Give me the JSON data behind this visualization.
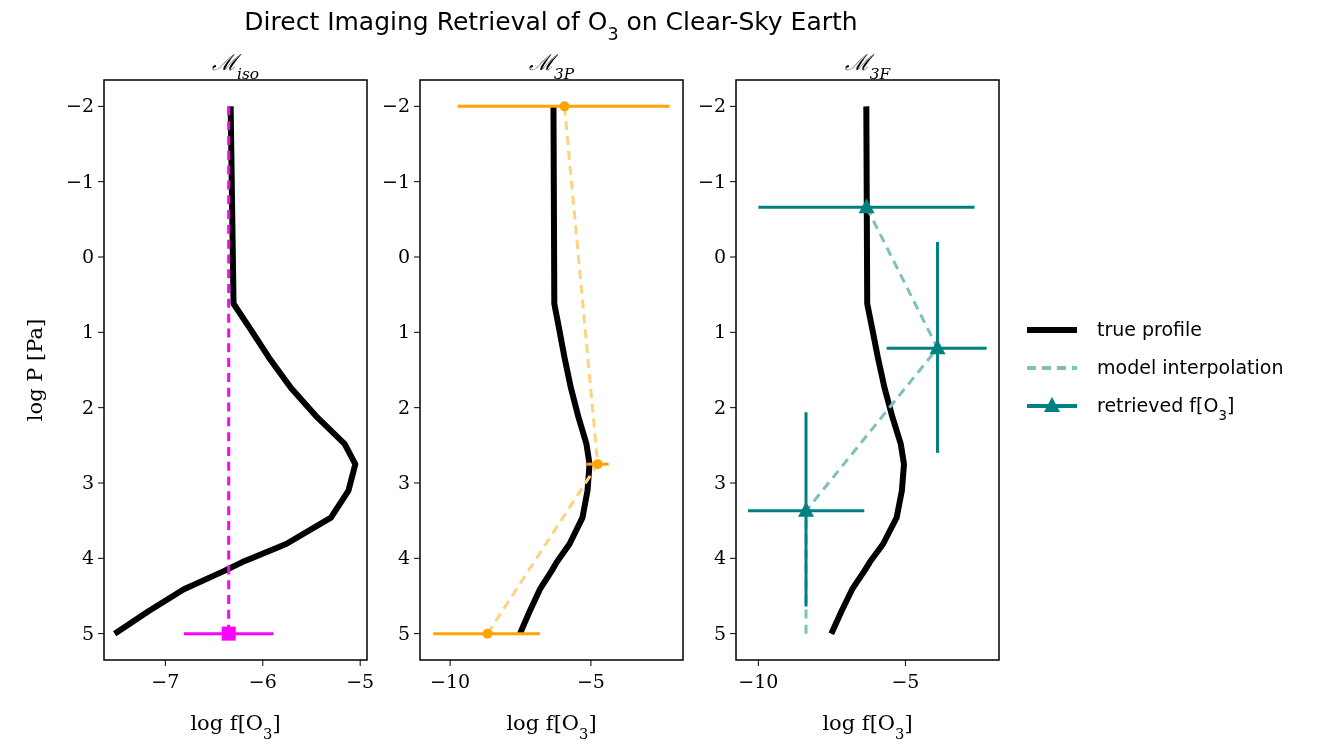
{
  "chart_data": [
    {
      "type": "line",
      "subtitle": "Direct Imaging Retrieval of O$_{3}$ on Clear-Sky Earth",
      "title": "ℳ$_{iso}$",
      "xlabel": "log f[O$_{3}$]",
      "ylabel": "log P [Pa]",
      "xlim": [
        -7.63,
        -4.93
      ],
      "xticks": [
        -7,
        -6,
        -5
      ],
      "ylim": [
        5.35,
        -2.35
      ],
      "yticks": [
        -2,
        -1,
        0,
        1,
        2,
        3,
        4,
        5
      ],
      "series": [
        {
          "color": "#000000",
          "line_style": "solid",
          "x": [
            -6.33,
            -6.3,
            -6.12,
            -5.94,
            -5.71,
            -5.44,
            -5.16,
            -5.05,
            -5.12,
            -5.3,
            -5.76,
            -6.21,
            -6.4,
            -6.81,
            -7.17,
            -7.52
          ],
          "values": [
            -2,
            0.62,
            0.97,
            1.33,
            1.74,
            2.13,
            2.48,
            2.75,
            3.1,
            3.46,
            3.81,
            4.05,
            4.17,
            4.41,
            4.7,
            5
          ]
        },
        {
          "color": "#ff00ff",
          "line_style": "dashed",
          "x": [
            -6.35,
            -6.35
          ],
          "values": [
            -2,
            5
          ]
        },
        {
          "type": "scatter",
          "color": "#ff00ff",
          "marker": "square",
          "x": [
            -6.35
          ],
          "values": [
            5
          ],
          "xerrors": [
            [
              -6.81,
              -5.89
            ]
          ]
        }
      ]
    },
    {
      "type": "line",
      "title": "ℳ$_{3P}$",
      "xlabel": "log f[O$_{3}$]",
      "xlim": [
        -11.07,
        -1.73
      ],
      "xticks": [
        -10,
        -5
      ],
      "ylim": [
        5.35,
        -2.35
      ],
      "yticks": [
        -2,
        -1,
        0,
        1,
        2,
        3,
        4,
        5
      ],
      "series": [
        {
          "color": "#000000",
          "line_style": "solid",
          "x": [
            -6.33,
            -6.3,
            -6.12,
            -5.94,
            -5.71,
            -5.44,
            -5.16,
            -5.05,
            -5.12,
            -5.3,
            -5.76,
            -6.21,
            -6.4,
            -6.81,
            -7.17,
            -7.52
          ],
          "values": [
            -2,
            0.62,
            0.97,
            1.33,
            1.74,
            2.13,
            2.48,
            2.75,
            3.1,
            3.46,
            3.81,
            4.05,
            4.17,
            4.41,
            4.7,
            5
          ]
        },
        {
          "color": "#ffd280",
          "line_style": "dashed",
          "x": [
            -5.94,
            -4.76,
            -8.67
          ],
          "values": [
            -2,
            2.75,
            5
          ]
        },
        {
          "type": "scatter",
          "color": "#ffa500",
          "marker": "circle",
          "x": [
            -5.94,
            -4.76,
            -8.67
          ],
          "values": [
            -2,
            2.75,
            5
          ],
          "xerrors": [
            [
              -9.73,
              -2.21
            ],
            [
              -5.15,
              -4.37
            ],
            [
              -10.6,
              -6.81
            ]
          ]
        }
      ]
    },
    {
      "type": "line",
      "title": "ℳ$_{3F}$",
      "xlabel": "log f[O$_{3}$]",
      "legend": "right",
      "xlim": [
        -10.76,
        -1.82
      ],
      "xticks": [
        -10,
        -5
      ],
      "ylim": [
        5.35,
        -2.35
      ],
      "yticks": [
        -2,
        -1,
        0,
        1,
        2,
        3,
        4,
        5
      ],
      "series": [
        {
          "name": "true profile",
          "color": "#000000",
          "line_style": "solid",
          "x": [
            -6.33,
            -6.3,
            -6.12,
            -5.94,
            -5.71,
            -5.44,
            -5.16,
            -5.05,
            -5.12,
            -5.3,
            -5.76,
            -6.21,
            -6.4,
            -6.81,
            -7.17,
            -7.52
          ],
          "values": [
            -2,
            0.62,
            0.97,
            1.33,
            1.74,
            2.13,
            2.48,
            2.75,
            3.1,
            3.46,
            3.81,
            4.05,
            4.17,
            4.41,
            4.7,
            5
          ]
        },
        {
          "name": "model interpolation",
          "color": "#7fbfbf",
          "line_style": "dashed",
          "x": [
            -6.32,
            -3.91,
            -8.38,
            -8.38
          ],
          "values": [
            -0.66,
            1.21,
            3.37,
            5
          ]
        },
        {
          "type": "scatter",
          "name": "retrieved f[O$_{3}$]",
          "color": "#008080",
          "marker": "triangle",
          "x": [
            -6.32,
            -3.91,
            -8.38
          ],
          "values": [
            -0.66,
            1.21,
            3.37
          ],
          "xerrors": [
            [
              -10.0,
              -2.65
            ],
            [
              -5.64,
              -2.24
            ],
            [
              -10.35,
              -6.4
            ]
          ],
          "errors": [
            null,
            [
              -0.2,
              2.6
            ],
            [
              2.06,
              4.64
            ]
          ]
        }
      ]
    }
  ]
}
